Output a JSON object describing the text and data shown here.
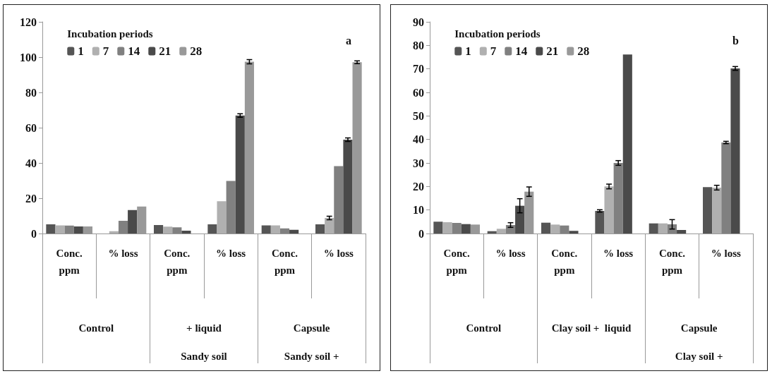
{
  "chart_data": [
    {
      "type": "bar",
      "legend_title": "Incubation periods",
      "legend": "top left",
      "grid": false,
      "ylim": [
        0,
        120
      ],
      "yticks": [
        0,
        20,
        40,
        60,
        80,
        100,
        120
      ],
      "categories": [
        "Conc.\nppm",
        "% loss",
        "Conc.\nppm",
        "% loss",
        "Conc.\nppm",
        "% loss"
      ],
      "annotations": [
        "a",
        "Control",
        "+ liquid\nSandy soil",
        "Capsule\nSandy soil +"
      ],
      "series": [
        {
          "name": "1",
          "color": "#555555",
          "values": [
            5.2,
            0,
            4.8,
            5.2,
            4.6,
            5.2
          ],
          "errors": [
            null,
            null,
            null,
            null,
            null,
            null
          ]
        },
        {
          "name": "7",
          "color": "#b0b0b0",
          "values": [
            4.6,
            1.3,
            3.9,
            18.3,
            4.6,
            8.8
          ],
          "errors": [
            null,
            null,
            null,
            null,
            null,
            1
          ]
        },
        {
          "name": "14",
          "color": "#808080",
          "values": [
            4.5,
            7.2,
            3.5,
            29.8,
            2.9,
            38.2
          ],
          "errors": [
            null,
            null,
            null,
            null,
            null,
            null
          ]
        },
        {
          "name": "21",
          "color": "#4a4a4a",
          "values": [
            4.0,
            13.3,
            1.6,
            66.9,
            2.1,
            53.2
          ],
          "errors": [
            null,
            null,
            null,
            1,
            null,
            1
          ]
        },
        {
          "name": "28",
          "color": "#999999",
          "values": [
            4.0,
            15.3,
            null,
            97.4,
            null,
            97.1
          ],
          "errors": [
            null,
            null,
            null,
            1.2,
            null,
            0.8
          ]
        }
      ]
    },
    {
      "type": "bar",
      "legend_title": "Incubation periods",
      "legend": "top left",
      "grid": false,
      "ylim": [
        0,
        90
      ],
      "yticks": [
        0,
        10,
        20,
        30,
        40,
        50,
        60,
        70,
        80,
        90
      ],
      "categories": [
        "Conc.\nppm",
        "% loss",
        "Conc.\nppm",
        "% loss",
        "Conc.\nppm",
        "% loss"
      ],
      "annotations": [
        "b",
        "Control",
        "Clay soil +  liquid",
        "Capsule\nClay soil +"
      ],
      "series": [
        {
          "name": "1",
          "color": "#555555",
          "values": [
            5.0,
            1.0,
            4.6,
            9.6,
            4.3,
            19.7
          ],
          "errors": [
            null,
            null,
            null,
            0.5,
            null,
            null
          ]
        },
        {
          "name": "7",
          "color": "#b0b0b0",
          "values": [
            4.8,
            2.0,
            3.8,
            20.0,
            4.3,
            19.5
          ],
          "errors": [
            null,
            null,
            null,
            1,
            null,
            1
          ]
        },
        {
          "name": "14",
          "color": "#808080",
          "values": [
            4.5,
            3.6,
            3.4,
            30.0,
            3.9,
            38.7
          ],
          "errors": [
            null,
            1,
            null,
            1,
            2,
            0.5
          ]
        },
        {
          "name": "21",
          "color": "#4a4a4a",
          "values": [
            4.0,
            11.8,
            1.1,
            76.1,
            1.5,
            70.2
          ],
          "errors": [
            null,
            3,
            null,
            null,
            null,
            0.8
          ]
        },
        {
          "name": "28",
          "color": "#999999",
          "values": [
            3.8,
            17.8,
            null,
            null,
            null,
            null
          ],
          "errors": [
            null,
            2,
            null,
            null,
            null,
            null
          ]
        }
      ]
    }
  ]
}
